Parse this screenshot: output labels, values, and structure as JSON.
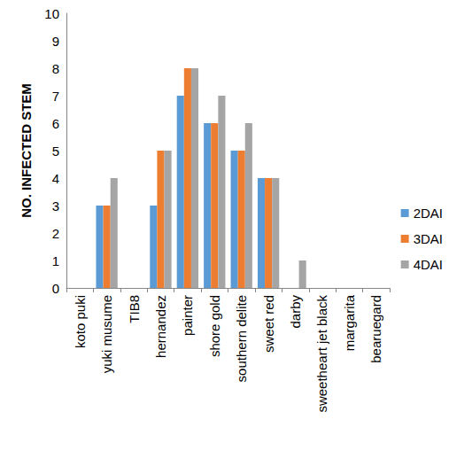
{
  "chart_data": {
    "type": "bar",
    "y_label": "NO. INFECTED STEM",
    "categories": [
      "koto puki",
      "yuki musume",
      "TIB8",
      "hernandez",
      "painter",
      "shore gold",
      "southern delite",
      "sweet red",
      "darby",
      "sweetheart jet black",
      "margarita",
      "bearuegard"
    ],
    "series": [
      {
        "name": "2DAI",
        "color": "#5b9bd5",
        "values": [
          0,
          3,
          0,
          3,
          7,
          6,
          5,
          4,
          0,
          0,
          0,
          0
        ]
      },
      {
        "name": "3DAI",
        "color": "#ed7d31",
        "values": [
          0,
          3,
          0,
          5,
          8,
          6,
          5,
          4,
          0,
          0,
          0,
          0
        ]
      },
      {
        "name": "4DAI",
        "color": "#a5a5a5",
        "values": [
          0,
          4,
          0,
          5,
          8,
          7,
          6,
          4,
          1,
          0,
          0,
          0
        ]
      }
    ],
    "ylim": [
      0,
      10
    ],
    "yticks": [
      0,
      1,
      2,
      3,
      4,
      5,
      6,
      7,
      8,
      9,
      10
    ],
    "grid": false,
    "legend": "right"
  }
}
